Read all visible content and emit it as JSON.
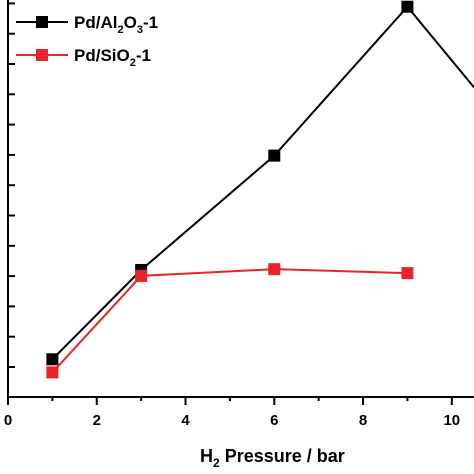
{
  "chart_data": {
    "type": "line",
    "xlabel_main": "H",
    "xlabel_sub": "2",
    "xlabel_rest": " Pressure / bar",
    "ylabel": "",
    "xlim": [
      0,
      10.5
    ],
    "ylim": [
      0,
      1.0
    ],
    "x_ticks": [
      0,
      2,
      4,
      6,
      8,
      10
    ],
    "x_tick_labels": [
      "0",
      "2",
      "4",
      "6",
      "8",
      "10"
    ],
    "y_minor_count": 13,
    "grid": false,
    "legend_position": "top-left",
    "series": [
      {
        "name_parts": [
          "Pd/Al",
          "2",
          "O",
          "3",
          "-1"
        ],
        "color": "#000000",
        "marker": "square",
        "x": [
          1,
          3,
          6,
          9,
          10.5
        ],
        "y": [
          0.095,
          0.32,
          0.608,
          0.983,
          0.78
        ]
      },
      {
        "name_parts": [
          "Pd/SiO",
          "2",
          "-1"
        ],
        "color": "#e8232a",
        "marker": "square",
        "x": [
          1,
          3,
          6,
          9
        ],
        "y": [
          0.062,
          0.305,
          0.322,
          0.312
        ]
      }
    ]
  }
}
